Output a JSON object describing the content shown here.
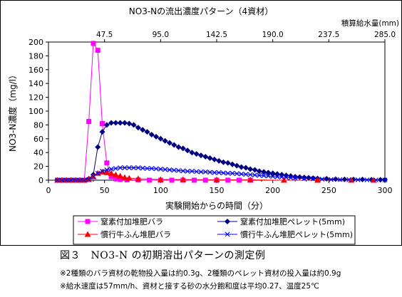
{
  "chart_data": {
    "type": "line",
    "title": "NO3-Nの流出濃度パターン（4資材）",
    "xlabel": "実験開始からの時間（分）",
    "ylabel": "NO3-N濃度（mg/l）",
    "xlim": [
      0,
      300
    ],
    "ylim": [
      0,
      200
    ],
    "xticks": [
      "0",
      "50",
      "100",
      "150",
      "200",
      "250",
      "300"
    ],
    "yticks": [
      "0",
      "20",
      "40",
      "60",
      "80",
      "100",
      "120",
      "140",
      "160",
      "180",
      "200"
    ],
    "grid": "none",
    "legend_position": "bottom",
    "secondary_axis": {
      "label": "積算給水量(mm)",
      "ticks": [
        {
          "x": 50,
          "label": "47.5"
        },
        {
          "x": 100,
          "label": "95.0"
        },
        {
          "x": 150,
          "label": "142.5"
        },
        {
          "x": 200,
          "label": "190.0"
        },
        {
          "x": 250,
          "label": "237.5"
        },
        {
          "x": 300,
          "label": "285.0"
        }
      ]
    },
    "series": [
      {
        "name": "窒素付加堆肥バラ",
        "color": "#FF00FF",
        "marker": "square",
        "x": [
          8,
          12,
          16,
          20,
          24,
          28,
          32,
          36,
          40,
          44,
          48,
          52,
          56,
          60,
          64,
          70,
          80,
          90,
          100,
          110,
          120,
          130,
          140,
          150,
          160,
          170,
          180
        ],
        "y": [
          0,
          0,
          0,
          0,
          0,
          0,
          0,
          85,
          198,
          188,
          82,
          25,
          5,
          2,
          1,
          0.5,
          0.3,
          0,
          0,
          0,
          0,
          0,
          0,
          0,
          0,
          0,
          0
        ]
      },
      {
        "name": "窒素付加堆肥ペレット(5mm)",
        "color": "#000080",
        "marker": "diamond",
        "x": [
          8,
          12,
          16,
          20,
          24,
          28,
          32,
          36,
          40,
          44,
          48,
          52,
          56,
          60,
          64,
          68,
          72,
          76,
          80,
          84,
          88,
          92,
          96,
          100,
          104,
          108,
          112,
          116,
          120,
          124,
          128,
          132,
          136,
          140,
          144,
          148,
          152,
          156,
          160,
          164,
          168,
          172,
          176,
          180,
          184,
          188,
          192,
          196,
          200,
          204,
          208,
          212,
          216,
          220,
          224,
          228,
          232,
          236,
          240,
          248,
          256,
          264,
          272,
          280,
          288,
          296,
          300
        ],
        "y": [
          0,
          0,
          0,
          0,
          0,
          0,
          0,
          2,
          8,
          48,
          70,
          80,
          83,
          83,
          83,
          83,
          82,
          80,
          76,
          73,
          70,
          66,
          63,
          60,
          57,
          54,
          51,
          48,
          46,
          43,
          40,
          38,
          36,
          34,
          32,
          30,
          28,
          26,
          25,
          23,
          21,
          19,
          18,
          16,
          15,
          13,
          12,
          11,
          10,
          9,
          8,
          7,
          6,
          5,
          4.5,
          4,
          3.5,
          3,
          2.5,
          2,
          1.5,
          1.2,
          1,
          1,
          0.8,
          0.6,
          0.5
        ]
      },
      {
        "name": "慣行牛ふん堆肥バラ",
        "color": "#FF0000",
        "marker": "triangle",
        "x": [
          8,
          12,
          16,
          20,
          24,
          28,
          32,
          36,
          40,
          44,
          48,
          52,
          56,
          60,
          64,
          68,
          72,
          80,
          100,
          120,
          150,
          180,
          210,
          240,
          270,
          290
        ],
        "y": [
          0,
          0,
          0,
          0,
          0,
          0,
          0,
          1,
          5,
          10,
          12,
          11,
          10,
          8,
          6,
          4,
          3,
          2,
          1,
          1,
          0.5,
          0.5,
          0,
          0,
          0,
          0
        ]
      },
      {
        "name": "慣行牛ふん堆肥ペレット(5mm)",
        "color": "#0000FF",
        "marker": "x",
        "x": [
          8,
          12,
          16,
          20,
          24,
          28,
          32,
          36,
          40,
          44,
          48,
          52,
          56,
          60,
          64,
          68,
          72,
          76,
          80,
          84,
          88,
          92,
          96,
          100,
          104,
          108,
          112,
          116,
          120,
          124,
          128,
          132,
          136,
          140,
          144,
          148,
          152,
          156,
          160,
          164,
          168,
          172,
          176,
          180,
          184,
          188,
          192,
          196,
          200,
          204,
          208,
          212,
          216,
          220,
          228,
          236,
          244,
          252,
          260,
          268,
          276,
          284,
          292,
          300
        ],
        "y": [
          0,
          0,
          0,
          0,
          0,
          0,
          0,
          1,
          5,
          10,
          13,
          15,
          16,
          17,
          18,
          18,
          18,
          18,
          18,
          17.5,
          17,
          17,
          16.5,
          16,
          15.5,
          15,
          14.5,
          14,
          13.5,
          13,
          13,
          12.5,
          12,
          12,
          11.5,
          11,
          11,
          10.5,
          10,
          10,
          9.5,
          9,
          8.5,
          8,
          7.5,
          7,
          6.5,
          6,
          5.5,
          5,
          4.5,
          4,
          3.5,
          3,
          2.5,
          2,
          1.5,
          1,
          1,
          0.8,
          0.6,
          0.5,
          0.4,
          0.3
        ]
      }
    ]
  },
  "caption": "図３　NO3-N の初期溶出パターンの測定例",
  "notes": [
    "※2種類のバラ資材の乾物投入量は約0.3g、2種類のペレット資材の投入量は約0.9g",
    "※給水速度は57mm/h、資材と接する砂の水分飽和度は平均0.27、温度25℃"
  ]
}
